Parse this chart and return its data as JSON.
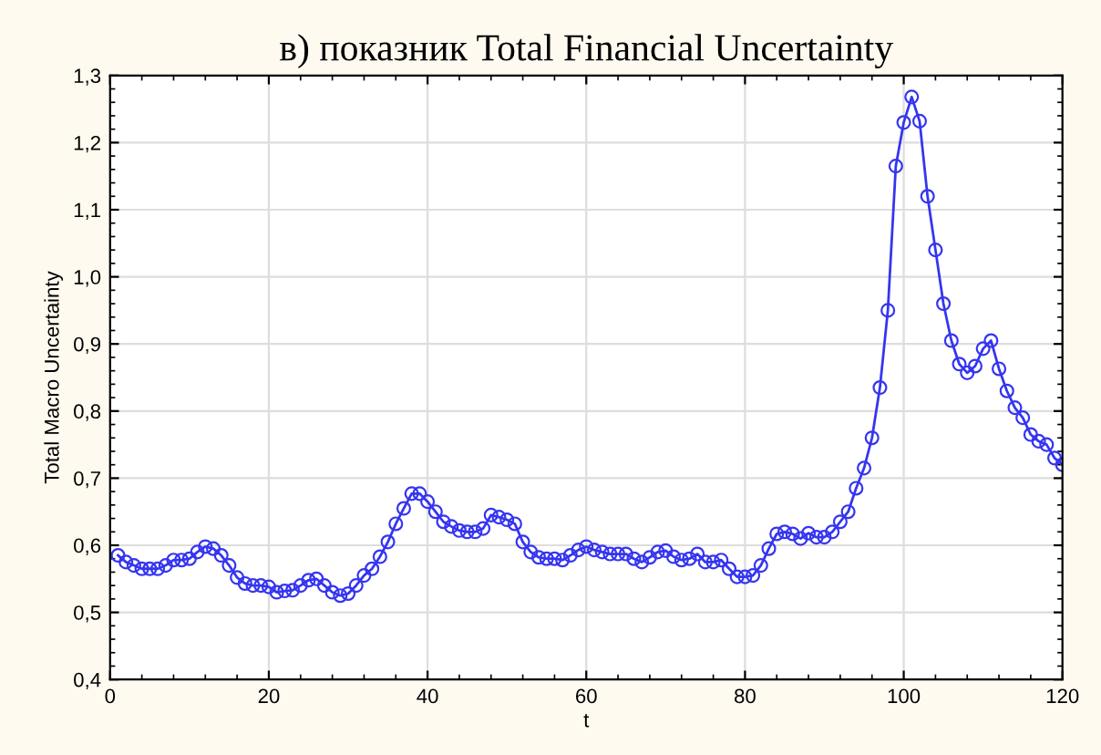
{
  "chart_data": {
    "type": "line",
    "title": "в) показник Total Financial Uncertainty",
    "xlabel": "t",
    "ylabel": "Total Macro Uncertainty",
    "x": [
      1,
      2,
      3,
      4,
      5,
      6,
      7,
      8,
      9,
      10,
      11,
      12,
      13,
      14,
      15,
      16,
      17,
      18,
      19,
      20,
      21,
      22,
      23,
      24,
      25,
      26,
      27,
      28,
      29,
      30,
      31,
      32,
      33,
      34,
      35,
      36,
      37,
      38,
      39,
      40,
      41,
      42,
      43,
      44,
      45,
      46,
      47,
      48,
      49,
      50,
      51,
      52,
      53,
      54,
      55,
      56,
      57,
      58,
      59,
      60,
      61,
      62,
      63,
      64,
      65,
      66,
      67,
      68,
      69,
      70,
      71,
      72,
      73,
      74,
      75,
      76,
      77,
      78,
      79,
      80,
      81,
      82,
      83,
      84,
      85,
      86,
      87,
      88,
      89,
      90,
      91,
      92,
      93,
      94,
      95,
      96,
      97,
      98,
      99,
      100,
      101,
      102,
      103,
      104,
      105,
      106,
      107,
      108,
      109,
      110,
      111,
      112,
      113,
      114,
      115,
      116,
      117,
      118,
      119,
      120
    ],
    "series": [
      {
        "color": "#3535f0",
        "values": [
          0.585,
          0.575,
          0.57,
          0.565,
          0.565,
          0.565,
          0.57,
          0.578,
          0.578,
          0.58,
          0.59,
          0.598,
          0.595,
          0.585,
          0.57,
          0.552,
          0.543,
          0.54,
          0.54,
          0.538,
          0.53,
          0.532,
          0.533,
          0.54,
          0.548,
          0.55,
          0.54,
          0.53,
          0.525,
          0.528,
          0.54,
          0.555,
          0.565,
          0.583,
          0.605,
          0.632,
          0.655,
          0.677,
          0.677,
          0.665,
          0.65,
          0.635,
          0.628,
          0.622,
          0.62,
          0.62,
          0.625,
          0.645,
          0.642,
          0.638,
          0.632,
          0.605,
          0.59,
          0.582,
          0.58,
          0.58,
          0.578,
          0.585,
          0.593,
          0.598,
          0.593,
          0.59,
          0.587,
          0.587,
          0.587,
          0.58,
          0.575,
          0.582,
          0.59,
          0.592,
          0.583,
          0.578,
          0.58,
          0.587,
          0.575,
          0.575,
          0.578,
          0.565,
          0.553,
          0.553,
          0.555,
          0.57,
          0.595,
          0.617,
          0.62,
          0.617,
          0.61,
          0.618,
          0.612,
          0.612,
          0.62,
          0.635,
          0.65,
          0.685,
          0.715,
          0.76,
          0.835,
          0.95,
          1.165,
          1.23,
          1.268,
          1.232,
          1.12,
          1.04,
          0.96,
          0.905,
          0.87,
          0.857,
          0.867,
          0.893,
          0.905,
          0.863,
          0.83,
          0.805,
          0.79,
          0.765,
          0.755,
          0.75,
          0.73,
          0.72
        ]
      }
    ],
    "xlim": [
      0,
      120
    ],
    "xticks": [
      0,
      20,
      40,
      60,
      80,
      100,
      120
    ],
    "ylim": [
      0.4,
      1.3
    ],
    "yticks": [
      {
        "value": 0.4,
        "label": "0,4"
      },
      {
        "value": 0.5,
        "label": "0,5"
      },
      {
        "value": 0.6,
        "label": "0,6"
      },
      {
        "value": 0.7,
        "label": "0,7"
      },
      {
        "value": 0.8,
        "label": "0,8"
      },
      {
        "value": 0.9,
        "label": "0,9"
      },
      {
        "value": 1.0,
        "label": "1,0"
      },
      {
        "value": 1.1,
        "label": "1,1"
      },
      {
        "value": 1.2,
        "label": "1,2"
      },
      {
        "value": 1.3,
        "label": "1,3"
      }
    ],
    "grid": true,
    "marker": "circle",
    "line_style": "solid",
    "legend": false
  }
}
